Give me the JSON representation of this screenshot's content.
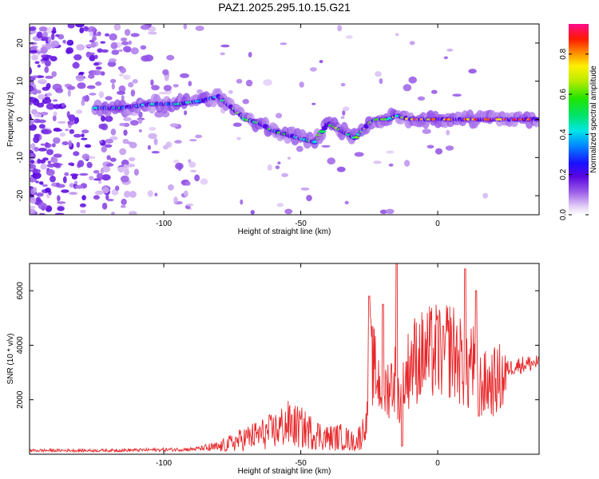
{
  "title": "PAZ1.2025.295.10.15.G21",
  "chart_data": [
    {
      "type": "heatmap",
      "xlabel": "Height of straight line (km)",
      "ylabel": "Frequency (Hz)",
      "xlim": [
        -149,
        37
      ],
      "ylim": [
        -25,
        25
      ],
      "xticks": [
        -100,
        -50,
        0
      ],
      "yticks": [
        -20,
        -10,
        0,
        10,
        20
      ],
      "colorbar": {
        "label": "Normalized spectral amplitude",
        "range": [
          0.0,
          0.95
        ],
        "ticks": [
          "0.0",
          "0.2",
          "0.4",
          "0.6",
          "0.8"
        ],
        "colormap": "rainbow (white to purple to blue to cyan to green to yellow to red to magenta)"
      },
      "ridge": {
        "x": [
          -125,
          -115,
          -105,
          -95,
          -85,
          -80,
          -75,
          -70,
          -65,
          -60,
          -55,
          -50,
          -45,
          -40,
          -35,
          -30,
          -25,
          -22,
          -18,
          -15,
          -10,
          -5,
          0,
          10,
          20,
          37
        ],
        "y": [
          3,
          3,
          4,
          4,
          5,
          6,
          3,
          0,
          -1,
          -3,
          -4,
          -5,
          -6,
          -1,
          -3,
          -5,
          -1,
          0,
          0,
          1,
          0,
          0,
          0,
          0,
          0,
          0
        ]
      }
    },
    {
      "type": "line",
      "xlabel": "Height of straight line (km)",
      "ylabel": "SNR (10 * v/v)",
      "xlim": [
        -149,
        37
      ],
      "ylim": [
        0,
        7000
      ],
      "xticks": [
        -100,
        -50,
        0
      ],
      "yticks": [
        2000,
        4000,
        6000
      ],
      "color": "#e8272a",
      "envelope": {
        "x": [
          -149,
          -120,
          -100,
          -90,
          -80,
          -70,
          -60,
          -55,
          -50,
          -45,
          -40,
          -35,
          -30,
          -26,
          -25,
          -20,
          -15,
          -14,
          -10,
          -5,
          0,
          5,
          10,
          11,
          12,
          15,
          20,
          25,
          30,
          37
        ],
        "y": [
          150,
          150,
          180,
          200,
          300,
          700,
          1000,
          1300,
          1150,
          900,
          700,
          750,
          500,
          1200,
          4000,
          2500,
          3200,
          2000,
          3800,
          4000,
          4200,
          4300,
          3500,
          3000,
          4000,
          2800,
          2900,
          3200,
          3350,
          3450
        ]
      },
      "spikes": [
        {
          "x": -25,
          "y": 5800
        },
        {
          "x": -20,
          "y": 5500
        },
        {
          "x": -15,
          "y": 7000
        },
        {
          "x": 10,
          "y": 6800
        },
        {
          "x": 14,
          "y": 6000
        },
        {
          "x": 2,
          "y": 4700
        }
      ],
      "dips": [
        {
          "x": -13,
          "y": 300
        },
        {
          "x": 15,
          "y": 1400
        }
      ]
    }
  ]
}
